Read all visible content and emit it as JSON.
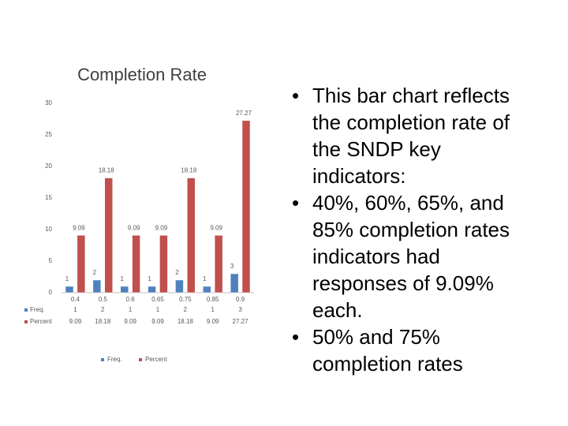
{
  "chart_data": {
    "type": "bar",
    "title": "Completion Rate",
    "categories": [
      "0.4",
      "0.5",
      "0.6",
      "0.65",
      "0.75",
      "0.85",
      "0.9"
    ],
    "series": [
      {
        "name": "Freq.",
        "color": "#4f81bd",
        "values": [
          1,
          2,
          1,
          1,
          2,
          1,
          3
        ]
      },
      {
        "name": "Percent",
        "color": "#c0504d",
        "values": [
          9.09,
          18.18,
          9.09,
          9.09,
          18.18,
          9.09,
          27.27
        ]
      }
    ],
    "ylim": [
      0,
      30
    ],
    "yticks": [
      0,
      5,
      10,
      15,
      20,
      25,
      30
    ],
    "grid": false,
    "legend": "bottom"
  },
  "bullets": [
    "This bar chart reflects the completion rate of the SNDP key indicators:",
    "40%, 60%, 65%, and 85% completion rates indicators had responses of 9.09% each.",
    "50% and 75% completion rates"
  ]
}
